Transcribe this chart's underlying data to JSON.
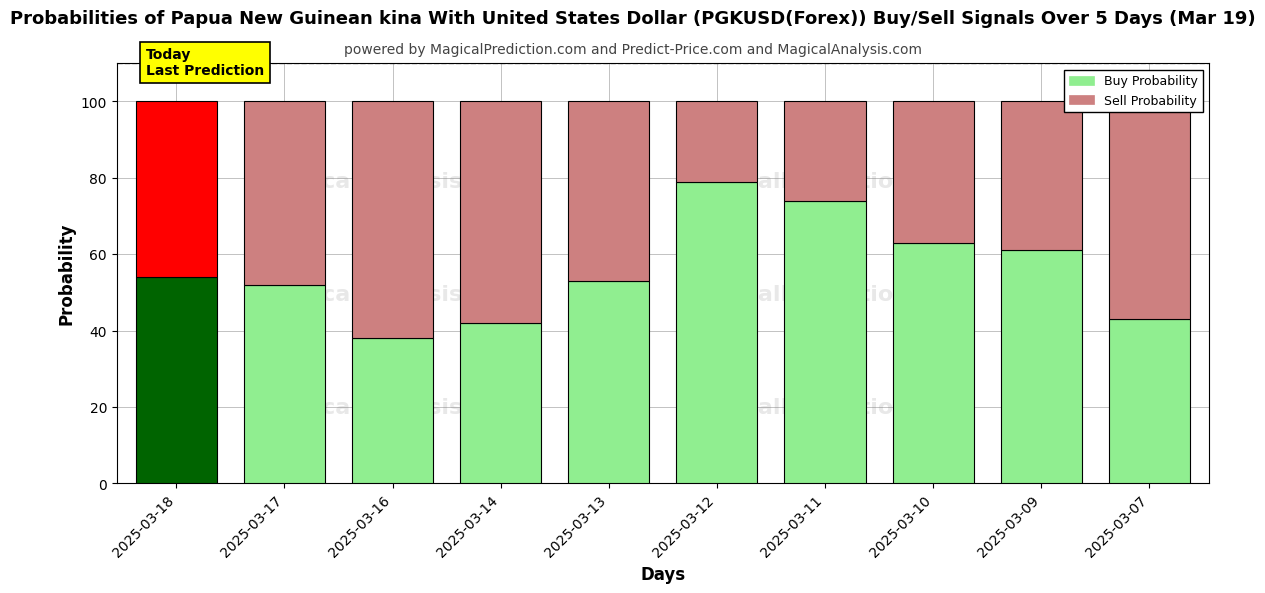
{
  "title": "Probabilities of Papua New Guinean kina With United States Dollar (PGKUSD(Forex)) Buy/Sell Signals Over 5 Days (Mar 19)",
  "subtitle": "powered by MagicalPrediction.com and Predict-Price.com and MagicalAnalysis.com",
  "xlabel": "Days",
  "ylabel": "Probability",
  "dates": [
    "2025-03-18",
    "2025-03-17",
    "2025-03-16",
    "2025-03-14",
    "2025-03-13",
    "2025-03-12",
    "2025-03-11",
    "2025-03-10",
    "2025-03-09",
    "2025-03-07"
  ],
  "buy_values": [
    54,
    52,
    38,
    42,
    53,
    79,
    74,
    63,
    61,
    43
  ],
  "sell_values": [
    46,
    48,
    62,
    58,
    47,
    21,
    26,
    37,
    39,
    57
  ],
  "today_bar_buy_color": "#006400",
  "today_bar_sell_color": "#FF0000",
  "other_bar_buy_color": "#90EE90",
  "other_bar_sell_color": "#CD8080",
  "bar_edge_color": "#000000",
  "today_annotation_bg": "#FFFF00",
  "today_annotation_text": "Today\nLast Prediction",
  "legend_buy_color": "#90EE90",
  "legend_sell_color": "#CD8080",
  "ylim": [
    0,
    110
  ],
  "dashed_line_y": 110,
  "background_color": "#ffffff",
  "grid_color": "#aaaaaa",
  "title_fontsize": 13,
  "subtitle_fontsize": 10,
  "axis_label_fontsize": 12,
  "tick_fontsize": 10
}
